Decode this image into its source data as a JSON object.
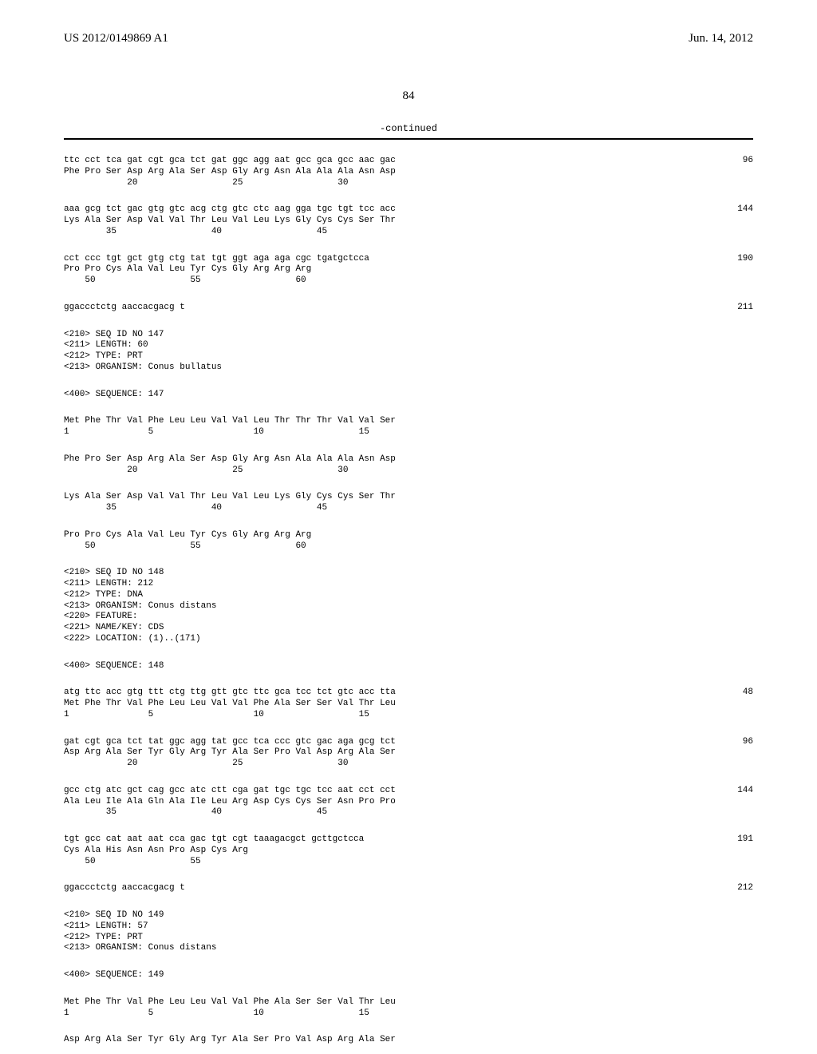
{
  "header": {
    "pub_number": "US 2012/0149869 A1",
    "pub_date": "Jun. 14, 2012"
  },
  "page_number": "84",
  "continued_label": "-continued",
  "blocks": [
    {
      "type": "seq-pair",
      "nt": "ttc cct tca gat cgt gca tct gat ggc agg aat gcc gca gcc aac gac",
      "aa": "Phe Pro Ser Asp Arg Ala Ser Asp Gly Arg Asn Ala Ala Ala Asn Asp",
      "pos": "            20                  25                  30",
      "num": "96"
    },
    {
      "type": "seq-pair",
      "nt": "aaa gcg tct gac gtg gtc acg ctg gtc ctc aag gga tgc tgt tcc acc",
      "aa": "Lys Ala Ser Asp Val Val Thr Leu Val Leu Lys Gly Cys Cys Ser Thr",
      "pos": "        35                  40                  45",
      "num": "144"
    },
    {
      "type": "seq-pair",
      "nt": "cct ccc tgt gct gtg ctg tat tgt ggt aga aga cgc tgatgctcca",
      "aa": "Pro Pro Cys Ala Val Leu Tyr Cys Gly Arg Arg Arg",
      "pos": "    50                  55                  60",
      "num": "190"
    },
    {
      "type": "seq-single",
      "text": "ggaccctctg aaccacgacg t",
      "num": "211"
    },
    {
      "type": "meta",
      "lines": [
        "<210> SEQ ID NO 147",
        "<211> LENGTH: 60",
        "<212> TYPE: PRT",
        "<213> ORGANISM: Conus bullatus"
      ]
    },
    {
      "type": "meta",
      "lines": [
        "<400> SEQUENCE: 147"
      ]
    },
    {
      "type": "seq-aa",
      "aa": "Met Phe Thr Val Phe Leu Leu Val Val Leu Thr Thr Thr Val Val Ser",
      "pos": "1               5                   10                  15"
    },
    {
      "type": "seq-aa",
      "aa": "Phe Pro Ser Asp Arg Ala Ser Asp Gly Arg Asn Ala Ala Ala Asn Asp",
      "pos": "            20                  25                  30"
    },
    {
      "type": "seq-aa",
      "aa": "Lys Ala Ser Asp Val Val Thr Leu Val Leu Lys Gly Cys Cys Ser Thr",
      "pos": "        35                  40                  45"
    },
    {
      "type": "seq-aa",
      "aa": "Pro Pro Cys Ala Val Leu Tyr Cys Gly Arg Arg Arg",
      "pos": "    50                  55                  60"
    },
    {
      "type": "meta",
      "lines": [
        "<210> SEQ ID NO 148",
        "<211> LENGTH: 212",
        "<212> TYPE: DNA",
        "<213> ORGANISM: Conus distans",
        "<220> FEATURE:",
        "<221> NAME/KEY: CDS",
        "<222> LOCATION: (1)..(171)"
      ]
    },
    {
      "type": "meta",
      "lines": [
        "<400> SEQUENCE: 148"
      ]
    },
    {
      "type": "seq-pair",
      "nt": "atg ttc acc gtg ttt ctg ttg gtt gtc ttc gca tcc tct gtc acc tta",
      "aa": "Met Phe Thr Val Phe Leu Leu Val Val Phe Ala Ser Ser Val Thr Leu",
      "pos": "1               5                   10                  15",
      "num": "48"
    },
    {
      "type": "seq-pair",
      "nt": "gat cgt gca tct tat ggc agg tat gcc tca ccc gtc gac aga gcg tct",
      "aa": "Asp Arg Ala Ser Tyr Gly Arg Tyr Ala Ser Pro Val Asp Arg Ala Ser",
      "pos": "            20                  25                  30",
      "num": "96"
    },
    {
      "type": "seq-pair",
      "nt": "gcc ctg atc gct cag gcc atc ctt cga gat tgc tgc tcc aat cct cct",
      "aa": "Ala Leu Ile Ala Gln Ala Ile Leu Arg Asp Cys Cys Ser Asn Pro Pro",
      "pos": "        35                  40                  45",
      "num": "144"
    },
    {
      "type": "seq-pair",
      "nt": "tgt gcc cat aat aat cca gac tgt cgt taaagacgct gcttgctcca",
      "aa": "Cys Ala His Asn Asn Pro Asp Cys Arg",
      "pos": "    50                  55",
      "num": "191"
    },
    {
      "type": "seq-single",
      "text": "ggaccctctg aaccacgacg t",
      "num": "212"
    },
    {
      "type": "meta",
      "lines": [
        "<210> SEQ ID NO 149",
        "<211> LENGTH: 57",
        "<212> TYPE: PRT",
        "<213> ORGANISM: Conus distans"
      ]
    },
    {
      "type": "meta",
      "lines": [
        "<400> SEQUENCE: 149"
      ]
    },
    {
      "type": "seq-aa",
      "aa": "Met Phe Thr Val Phe Leu Leu Val Val Phe Ala Ser Ser Val Thr Leu",
      "pos": "1               5                   10                  15"
    },
    {
      "type": "seq-aa-nopos",
      "aa": "Asp Arg Ala Ser Tyr Gly Arg Tyr Ala Ser Pro Val Asp Arg Ala Ser"
    }
  ]
}
